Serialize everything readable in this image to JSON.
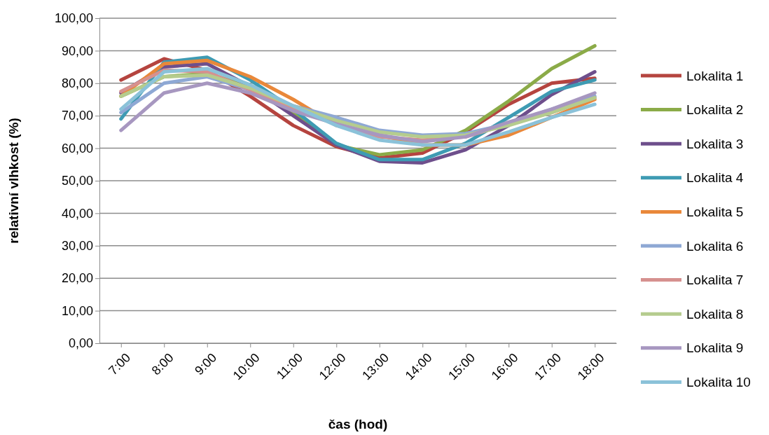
{
  "chart_data": {
    "type": "line",
    "xlabel": "čas (hod)",
    "ylabel": "relativní vlhkost (%)",
    "categories": [
      "7:00",
      "8:00",
      "9:00",
      "10:00",
      "11:00",
      "12:00",
      "13:00",
      "14:00",
      "15:00",
      "16:00",
      "17:00",
      "18:00"
    ],
    "ylim": [
      0,
      100
    ],
    "yticks": [
      {
        "value": 0,
        "label": "0,00"
      },
      {
        "value": 10,
        "label": "10,00"
      },
      {
        "value": 20,
        "label": "20,00"
      },
      {
        "value": 30,
        "label": "30,00"
      },
      {
        "value": 40,
        "label": "40,00"
      },
      {
        "value": 50,
        "label": "50,00"
      },
      {
        "value": 60,
        "label": "60,00"
      },
      {
        "value": 70,
        "label": "70,00"
      },
      {
        "value": 80,
        "label": "80,00"
      },
      {
        "value": 90,
        "label": "90,00"
      },
      {
        "value": 100,
        "label": "100,00"
      }
    ],
    "grid": "y",
    "legend": "right",
    "marker": "none",
    "line_style": "solid",
    "series": [
      {
        "name": "Lokalita 1",
        "color": "#b5443f",
        "values": [
          81,
          87.5,
          84,
          76,
          67,
          60.5,
          57,
          58.5,
          65,
          73.5,
          80,
          81.5
        ]
      },
      {
        "name": "Lokalita 2",
        "color": "#8bab48",
        "values": [
          76,
          82,
          83,
          79,
          71,
          61,
          58,
          59.5,
          65.5,
          74.5,
          84.5,
          91.5
        ]
      },
      {
        "name": "Lokalita 3",
        "color": "#6e4f8c",
        "values": [
          77,
          85,
          86,
          79,
          70,
          61,
          56,
          55.5,
          59.5,
          67,
          76.5,
          83.5
        ]
      },
      {
        "name": "Lokalita 4",
        "color": "#3e9bb3",
        "values": [
          69,
          86.5,
          88,
          81,
          72,
          61.5,
          56.5,
          56.5,
          61.5,
          69.5,
          77.5,
          81
        ]
      },
      {
        "name": "Lokalita 5",
        "color": "#e9883a",
        "values": [
          76,
          86,
          87,
          82,
          75,
          67,
          64,
          61,
          61,
          64,
          69.5,
          75
        ]
      },
      {
        "name": "Lokalita 6",
        "color": "#8ea8d4",
        "values": [
          71,
          80,
          82,
          78,
          73,
          69.5,
          65.5,
          64,
          64.5,
          67.5,
          72,
          76
        ]
      },
      {
        "name": "Lokalita 7",
        "color": "#d6918f",
        "values": [
          77.5,
          84,
          83.5,
          78,
          72,
          67.5,
          63.5,
          62.5,
          63.5,
          67.5,
          71,
          75.5
        ]
      },
      {
        "name": "Lokalita 8",
        "color": "#b5cc8e",
        "values": [
          76,
          82,
          82.5,
          78.5,
          73,
          68.5,
          65,
          63.5,
          64,
          67,
          71,
          75.5
        ]
      },
      {
        "name": "Lokalita 9",
        "color": "#a797c0",
        "values": [
          65.5,
          77,
          80,
          77,
          71.5,
          67.5,
          64,
          62,
          63.5,
          68,
          72,
          77
        ]
      },
      {
        "name": "Lokalita 10",
        "color": "#8bc2d9",
        "values": [
          72,
          83.5,
          84.5,
          79.5,
          73,
          67,
          62.5,
          61,
          61,
          65,
          69.5,
          73.5
        ]
      }
    ]
  }
}
